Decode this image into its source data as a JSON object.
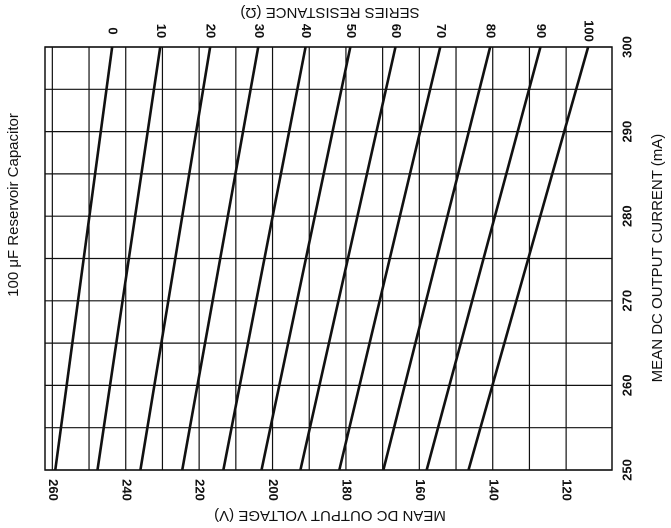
{
  "chart_data": {
    "type": "line",
    "title": "SERIES RESISTANCE (Ω)",
    "x_label": "MEAN DC OUTPUT VOLTAGE (V)",
    "y_label": "MEAN DC OUTPUT CURRENT (mA)",
    "annotation": "100 μF Reservoir Capacitor",
    "xlim": [
      262,
      107.5
    ],
    "xticks": [
      260,
      240,
      220,
      200,
      180,
      160,
      140,
      120
    ],
    "ylim": [
      250,
      300
    ],
    "yticks": [
      250,
      260,
      270,
      280,
      290,
      300
    ],
    "grid": true,
    "color": "#111",
    "series": [
      {
        "name": "0",
        "x": [
          259.2,
          243.7
        ],
        "values": [
          250,
          300
        ]
      },
      {
        "name": "10",
        "x": [
          247.7,
          230.6
        ],
        "values": [
          250,
          300
        ]
      },
      {
        "name": "20",
        "x": [
          236,
          217
        ],
        "values": [
          250,
          300
        ]
      },
      {
        "name": "30",
        "x": [
          224.6,
          203.9
        ],
        "values": [
          250,
          300
        ]
      },
      {
        "name": "40",
        "x": [
          213.4,
          191
        ],
        "values": [
          250,
          300
        ]
      },
      {
        "name": "50",
        "x": [
          203,
          178.8
        ],
        "values": [
          250,
          300
        ]
      },
      {
        "name": "60",
        "x": [
          192.4,
          166.5
        ],
        "values": [
          250,
          300
        ]
      },
      {
        "name": "70",
        "x": [
          181.8,
          154.3
        ],
        "values": [
          250,
          300
        ]
      },
      {
        "name": "80",
        "x": [
          169.8,
          140.7
        ],
        "values": [
          250,
          300
        ]
      },
      {
        "name": "90",
        "x": [
          158,
          127
        ],
        "values": [
          250,
          300
        ]
      },
      {
        "name": "100",
        "x": [
          146.6,
          114
        ],
        "values": [
          250,
          300
        ]
      }
    ]
  }
}
